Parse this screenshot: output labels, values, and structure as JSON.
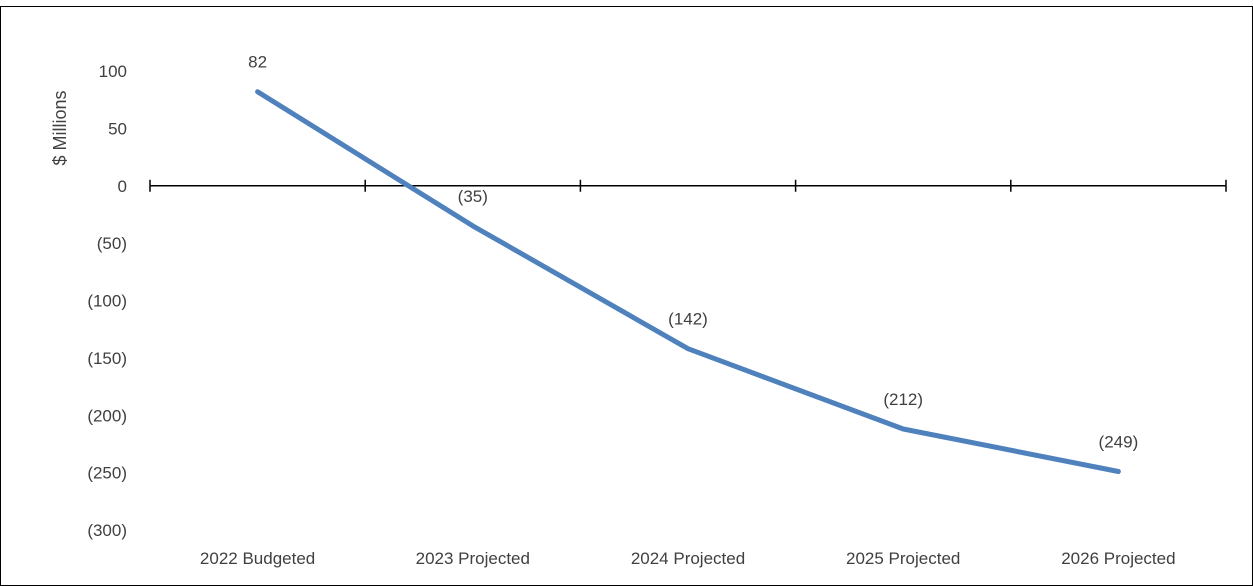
{
  "caption": "",
  "chart_data": {
    "type": "line",
    "categories": [
      "2022 Budgeted",
      "2023 Projected",
      "2024 Projected",
      "2025 Projected",
      "2026 Projected"
    ],
    "series": [
      {
        "values": [
          82,
          -35,
          -142,
          -212,
          -249
        ],
        "data_labels": [
          "82",
          "(35)",
          "(142)",
          "(212)",
          "(249)"
        ]
      }
    ],
    "ylabel": "$ Millions",
    "ylim": [
      -300,
      100
    ],
    "yticks": [
      100,
      50,
      0,
      -50,
      -100,
      -150,
      -200,
      -250,
      -300
    ],
    "ytick_labels": [
      "100",
      "50",
      "0",
      "(50)",
      "(100)",
      "(150)",
      "(200)",
      "(250)",
      "(300)"
    ],
    "grid": false,
    "legend": "none",
    "line_color": "#4F81BD",
    "axis_color": "#000000"
  }
}
